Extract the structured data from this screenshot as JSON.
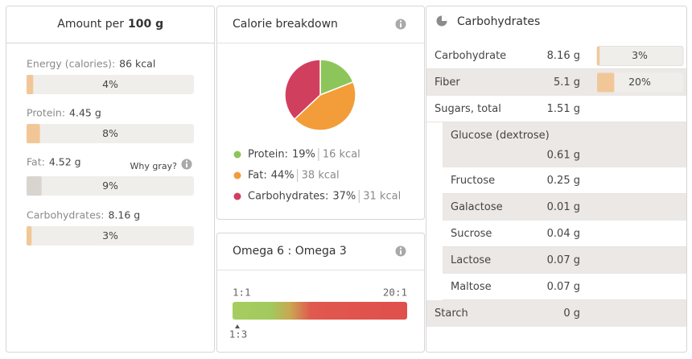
{
  "amount_panel": {
    "title_prefix": "Amount per",
    "title_amount": "100 g",
    "why_gray": "Why gray?",
    "nutrients": [
      {
        "label": "Energy (calories):",
        "amount": "86 kcal",
        "percent": 4,
        "percent_label": "4%",
        "color": "#f2c797"
      },
      {
        "label": "Protein:",
        "amount": "4.45 g",
        "percent": 8,
        "percent_label": "8%",
        "color": "#f2c797"
      },
      {
        "label": "Fat:",
        "amount": "4.52 g",
        "percent": 9,
        "percent_label": "9%",
        "color": "#d8d5d1"
      },
      {
        "label": "Carbohydrates:",
        "amount": "8.16 g",
        "percent": 3,
        "percent_label": "3%",
        "color": "#f2c797"
      }
    ]
  },
  "calorie_panel": {
    "title": "Calorie breakdown",
    "items": [
      {
        "name": "Protein:",
        "percent": 19,
        "percent_label": "19%",
        "energy": "16 kcal",
        "color": "#8cc65a"
      },
      {
        "name": "Fat:",
        "percent": 44,
        "percent_label": "44%",
        "energy": "38 kcal",
        "color": "#f39c3a"
      },
      {
        "name": "Carbohydrates:",
        "percent": 37,
        "percent_label": "37%",
        "energy": "31 kcal",
        "color": "#d13f5f"
      }
    ]
  },
  "omega_panel": {
    "title": "Omega 6 : Omega 3",
    "scale_min": "1:1",
    "scale_max": "20:1",
    "marker": "1:3"
  },
  "carbs_panel": {
    "title": "Carbohydrates",
    "bar_color": "#f2c797",
    "rows": [
      {
        "name": "Carbohydrate",
        "amount": "8.16 g",
        "percent": 3,
        "percent_label": "3%",
        "indent": false,
        "shaded": false
      },
      {
        "name": "Fiber",
        "amount": "5.1 g",
        "percent": 20,
        "percent_label": "20%",
        "indent": false,
        "shaded": true
      },
      {
        "name": "Sugars, total",
        "amount": "1.51 g",
        "indent": false,
        "shaded": false
      },
      {
        "name": "Glucose (dextrose)",
        "amount": "0.61 g",
        "indent": true,
        "shaded": true
      },
      {
        "name": "Fructose",
        "amount": "0.25 g",
        "indent": true,
        "shaded": false
      },
      {
        "name": "Galactose",
        "amount": "0.01 g",
        "indent": true,
        "shaded": true
      },
      {
        "name": "Sucrose",
        "amount": "0.04 g",
        "indent": true,
        "shaded": false
      },
      {
        "name": "Lactose",
        "amount": "0.07 g",
        "indent": true,
        "shaded": true
      },
      {
        "name": "Maltose",
        "amount": "0.07 g",
        "indent": true,
        "shaded": false
      },
      {
        "name": "Starch",
        "amount": "0 g",
        "indent": false,
        "shaded": true
      }
    ]
  }
}
